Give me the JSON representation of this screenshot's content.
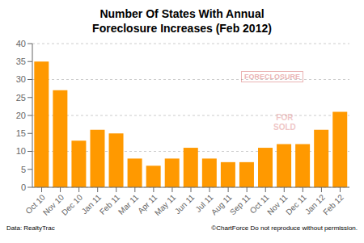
{
  "chart_data": {
    "type": "bar",
    "title": "Number Of States With Annual\nForeclosure Increases (Feb 2012)",
    "categories": [
      "Oct 10",
      "Nov 10",
      "Dec 10",
      "Jan 11",
      "Feb 11",
      "Mar 11",
      "Apr 11",
      "May 11",
      "Jun 11",
      "Jul 11",
      "Aug 11",
      "Sep 11",
      "Oct 11",
      "Nov 11",
      "Dec 11",
      "Jan 12",
      "Feb 12"
    ],
    "values": [
      35,
      27,
      13,
      16,
      15,
      8,
      6,
      8,
      11,
      8,
      7,
      7,
      11,
      12,
      12,
      16,
      21
    ],
    "color": "#FF9900",
    "ylim": [
      0,
      40
    ],
    "yticks": [
      0,
      5,
      10,
      15,
      20,
      25,
      30,
      35,
      40
    ],
    "grid": true,
    "annotations": [
      "FORECLOSURE",
      "FOR\nSOLD",
      "Data: RealtyTrac",
      "©ChartForce  Do not reproduce without permission."
    ]
  }
}
